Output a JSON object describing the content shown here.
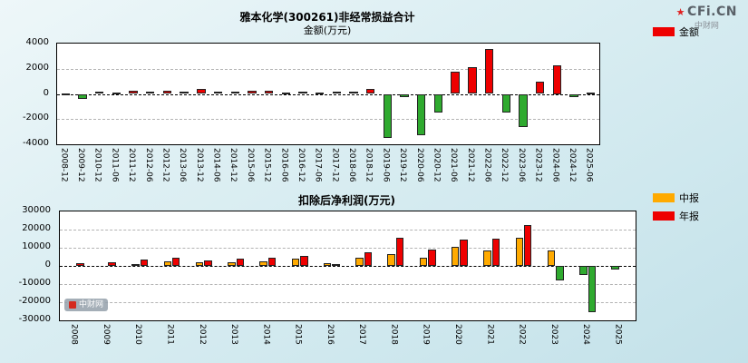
{
  "page": {
    "brand": "CFi.CN",
    "brand_sub": "中财网",
    "watermark": "中财网"
  },
  "chart_data": [
    {
      "type": "bar",
      "title": "雅本化学(300261)非经常损益合计",
      "subtitle": "金额(万元)",
      "xlabel": "",
      "ylabel": "金额(万元)",
      "ylim": [
        -4000,
        4000
      ],
      "yticks": [
        4000,
        2000,
        0,
        -2000,
        -4000
      ],
      "grid": true,
      "legend_position": "top-right",
      "legend": [
        {
          "label": "金额",
          "color": "#ee0000"
        }
      ],
      "positive_color": "#ee0000",
      "negative_color": "#2faa2f",
      "categories": [
        "2008-12",
        "2009-12",
        "2010-12",
        "2011-06",
        "2011-12",
        "2012-06",
        "2012-12",
        "2013-06",
        "2013-12",
        "2014-06",
        "2014-12",
        "2015-06",
        "2015-12",
        "2016-06",
        "2016-12",
        "2017-06",
        "2017-12",
        "2018-06",
        "2018-12",
        "2019-06",
        "2019-12",
        "2020-06",
        "2020-12",
        "2021-06",
        "2021-12",
        "2022-06",
        "2022-12",
        "2023-06",
        "2023-12",
        "2024-06",
        "2024-12",
        "2025-06"
      ],
      "values": [
        60,
        -430,
        200,
        120,
        260,
        160,
        280,
        200,
        380,
        150,
        200,
        280,
        220,
        120,
        180,
        120,
        180,
        160,
        420,
        -3500,
        -250,
        -3250,
        -1500,
        1800,
        2150,
        3600,
        -1450,
        -2600,
        950,
        2250,
        -280,
        120
      ]
    },
    {
      "type": "bar",
      "title": "扣除后净利润(万元)",
      "xlabel": "",
      "ylabel": "扣除后净利润(万元)",
      "ylim": [
        -30000,
        30000
      ],
      "yticks": [
        30000,
        20000,
        10000,
        0,
        -10000,
        -20000,
        -30000
      ],
      "grid": true,
      "legend_position": "top-right",
      "legend": [
        {
          "label": "中报",
          "color": "#ffaa00"
        },
        {
          "label": "年报",
          "color": "#ee0000"
        }
      ],
      "negative_color": "#2faa2f",
      "categories": [
        "2008",
        "2009",
        "2010",
        "2011",
        "2012",
        "2013",
        "2014",
        "2015",
        "2016",
        "2017",
        "2018",
        "2019",
        "2020",
        "2021",
        "2022",
        "2023",
        "2024",
        "2025"
      ],
      "series": [
        {
          "name": "中报",
          "color": "#ffaa00",
          "values": [
            null,
            null,
            900,
            2400,
            1900,
            2100,
            2500,
            3900,
            1400,
            4400,
            6500,
            4600,
            10500,
            8500,
            15500,
            8500,
            -5200,
            -2100
          ]
        },
        {
          "name": "年报",
          "color": "#ee0000",
          "values": [
            1600,
            2100,
            3600,
            4400,
            3000,
            3900,
            4400,
            5600,
            1000,
            7400,
            15600,
            9100,
            14500,
            15100,
            22600,
            -8200,
            -25500,
            null
          ]
        }
      ]
    }
  ]
}
